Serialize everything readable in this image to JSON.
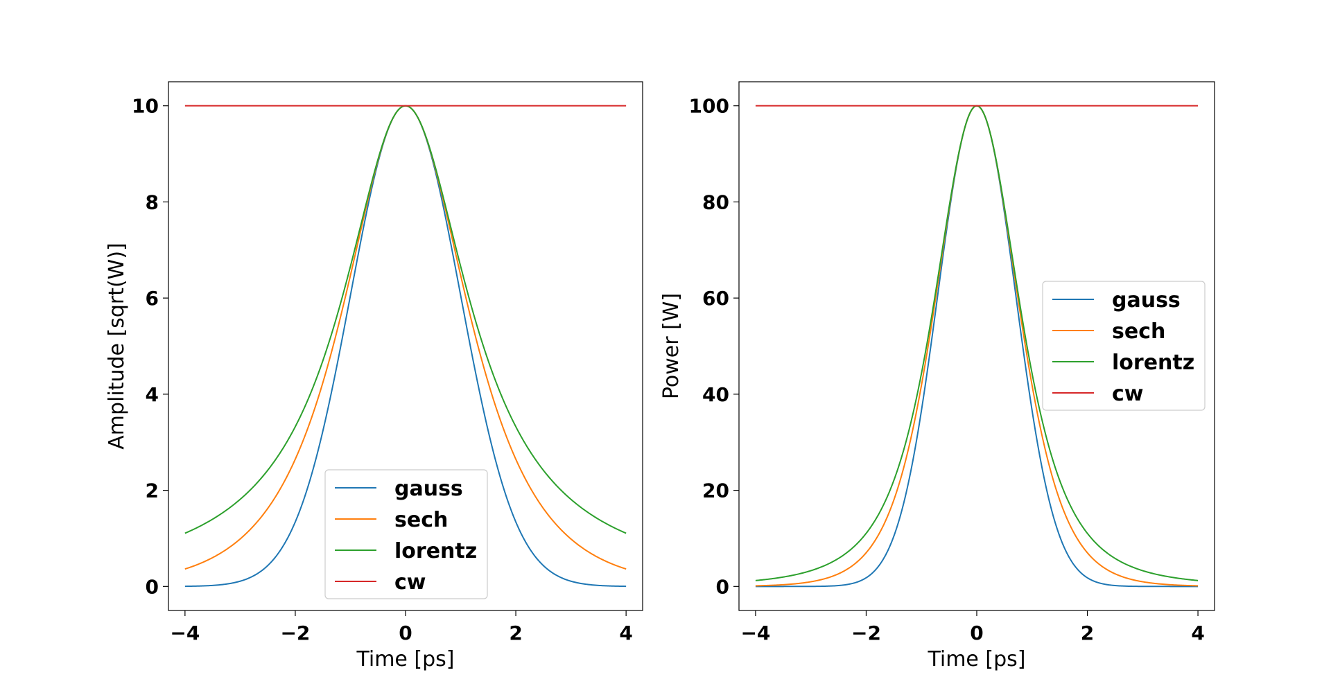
{
  "chart_data": [
    {
      "type": "line",
      "title": "",
      "xlabel": "Time [ps]",
      "ylabel": "Amplitude [sqrt(W)]",
      "xlim": [
        -4.3,
        4.3
      ],
      "ylim": [
        -0.5,
        10.5
      ],
      "xticks": [
        -4,
        -2,
        0,
        2,
        4
      ],
      "yticks": [
        0,
        2,
        4,
        6,
        8,
        10
      ],
      "grid": false,
      "legend_position": "lower-center",
      "quantity": "amplitude",
      "x_range": [
        -4,
        4
      ],
      "series": [
        {
          "name": "gauss",
          "color": "#1f77b4",
          "peak": 10,
          "shape": "gauss",
          "fwhm_ps": 2.35
        },
        {
          "name": "sech",
          "color": "#ff7f0e",
          "peak": 10,
          "shape": "sech",
          "fwhm_ps": 2.35
        },
        {
          "name": "lorentz",
          "color": "#2ca02c",
          "peak": 10,
          "shape": "lorentz",
          "fwhm_ps": 2.35
        },
        {
          "name": "cw",
          "color": "#d62728",
          "peak": 10,
          "shape": "cw"
        }
      ]
    },
    {
      "type": "line",
      "title": "",
      "xlabel": "Time [ps]",
      "ylabel": "Power [W]",
      "xlim": [
        -4.3,
        4.3
      ],
      "ylim": [
        -5,
        105
      ],
      "xticks": [
        -4,
        -2,
        0,
        2,
        4
      ],
      "yticks": [
        0,
        20,
        40,
        60,
        80,
        100
      ],
      "grid": false,
      "legend_position": "center-right",
      "quantity": "power",
      "x_range": [
        -4,
        4
      ],
      "series": [
        {
          "name": "gauss",
          "color": "#1f77b4",
          "peak": 100,
          "shape": "gauss",
          "fwhm_ps": 2.35
        },
        {
          "name": "sech",
          "color": "#ff7f0e",
          "peak": 100,
          "shape": "sech",
          "fwhm_ps": 2.35
        },
        {
          "name": "lorentz",
          "color": "#2ca02c",
          "peak": 100,
          "shape": "lorentz",
          "fwhm_ps": 2.35
        },
        {
          "name": "cw",
          "color": "#d62728",
          "peak": 100,
          "shape": "cw"
        }
      ]
    }
  ]
}
